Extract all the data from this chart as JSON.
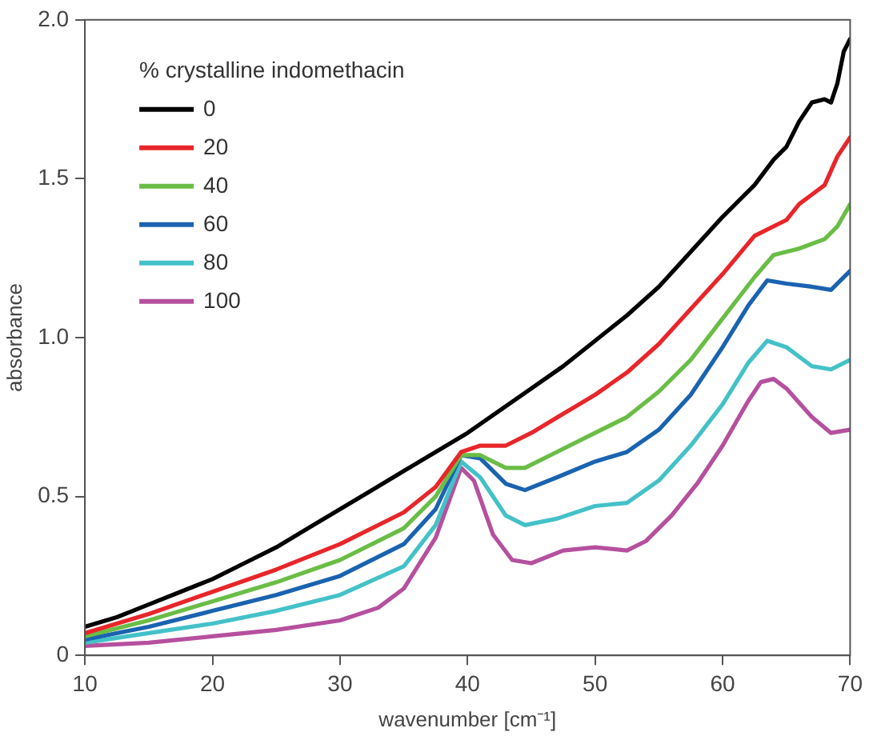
{
  "chart_data": {
    "type": "line",
    "xlabel": "wavenumber [cm⁻¹]",
    "ylabel": "absorbance",
    "legend_title": "% crystalline indomethacin",
    "legend": "top left",
    "grid": false,
    "marker": "none",
    "line_style": "solid",
    "xlim": [
      10,
      70
    ],
    "xticks": [
      10,
      20,
      30,
      40,
      50,
      60,
      70
    ],
    "ylim": [
      0,
      2
    ],
    "yticks": [
      0,
      0.5,
      {
        "value": 1,
        "label": "1.0"
      },
      1.5,
      {
        "value": 2,
        "label": "2.0"
      }
    ],
    "series": [
      {
        "name": "0",
        "color": "#000000",
        "x": [
          10,
          12.5,
          15,
          17.5,
          20,
          22.5,
          25,
          27.5,
          30,
          32.5,
          35,
          37.5,
          40,
          42.5,
          45,
          47.5,
          50,
          52.5,
          55,
          57.5,
          60,
          62.5,
          64,
          65,
          66,
          67,
          68,
          68.5,
          69,
          69.5,
          70
        ],
        "values": [
          0.09,
          0.12,
          0.16,
          0.2,
          0.24,
          0.29,
          0.34,
          0.4,
          0.46,
          0.52,
          0.58,
          0.64,
          0.7,
          0.77,
          0.84,
          0.91,
          0.99,
          1.07,
          1.16,
          1.27,
          1.38,
          1.48,
          1.56,
          1.6,
          1.68,
          1.74,
          1.75,
          1.74,
          1.8,
          1.9,
          1.94
        ]
      },
      {
        "name": "20",
        "color": "#e8262a",
        "x": [
          10,
          15,
          20,
          25,
          30,
          35,
          37.5,
          39.5,
          41,
          43,
          45,
          47.5,
          50,
          52.5,
          55,
          57.5,
          60,
          62.5,
          65,
          66,
          67,
          68,
          69,
          70
        ],
        "values": [
          0.07,
          0.13,
          0.2,
          0.27,
          0.35,
          0.45,
          0.53,
          0.64,
          0.66,
          0.66,
          0.7,
          0.76,
          0.82,
          0.89,
          0.98,
          1.09,
          1.2,
          1.32,
          1.37,
          1.42,
          1.45,
          1.48,
          1.57,
          1.63
        ]
      },
      {
        "name": "40",
        "color": "#6abd45",
        "x": [
          10,
          15,
          20,
          25,
          30,
          35,
          37.5,
          39.5,
          41,
          43,
          44.5,
          47,
          50,
          52.5,
          55,
          57.5,
          60,
          62.5,
          64,
          66,
          68,
          69,
          70
        ],
        "values": [
          0.06,
          0.11,
          0.17,
          0.23,
          0.3,
          0.4,
          0.5,
          0.63,
          0.63,
          0.59,
          0.59,
          0.64,
          0.7,
          0.75,
          0.83,
          0.93,
          1.06,
          1.19,
          1.26,
          1.28,
          1.31,
          1.35,
          1.42
        ]
      },
      {
        "name": "60",
        "color": "#1a63b0",
        "x": [
          10,
          15,
          20,
          25,
          30,
          35,
          37.5,
          39.5,
          41,
          43,
          44.5,
          47,
          50,
          52.5,
          55,
          57.5,
          60,
          62,
          63.5,
          65,
          67,
          68.5,
          70
        ],
        "values": [
          0.05,
          0.09,
          0.14,
          0.19,
          0.25,
          0.35,
          0.46,
          0.63,
          0.62,
          0.54,
          0.52,
          0.56,
          0.61,
          0.64,
          0.71,
          0.82,
          0.97,
          1.1,
          1.18,
          1.17,
          1.16,
          1.15,
          1.21
        ]
      },
      {
        "name": "80",
        "color": "#44c1c8",
        "x": [
          10,
          15,
          20,
          25,
          30,
          35,
          37.5,
          39.5,
          41,
          43,
          44.5,
          47,
          50,
          52.5,
          55,
          57.5,
          60,
          62,
          63.5,
          65,
          67,
          68.5,
          70
        ],
        "values": [
          0.04,
          0.07,
          0.1,
          0.14,
          0.19,
          0.28,
          0.41,
          0.61,
          0.56,
          0.44,
          0.41,
          0.43,
          0.47,
          0.48,
          0.55,
          0.66,
          0.79,
          0.92,
          0.99,
          0.97,
          0.91,
          0.9,
          0.93
        ]
      },
      {
        "name": "100",
        "color": "#b5509e",
        "x": [
          10,
          15,
          20,
          25,
          30,
          33,
          35,
          37.5,
          39.5,
          40.5,
          42,
          43.5,
          45,
          47.5,
          50,
          52.5,
          54,
          56,
          58,
          60,
          62,
          63,
          64,
          65,
          67,
          68.5,
          70
        ],
        "values": [
          0.03,
          0.04,
          0.06,
          0.08,
          0.11,
          0.15,
          0.21,
          0.37,
          0.59,
          0.55,
          0.38,
          0.3,
          0.29,
          0.33,
          0.34,
          0.33,
          0.36,
          0.44,
          0.54,
          0.66,
          0.8,
          0.86,
          0.87,
          0.84,
          0.75,
          0.7,
          0.71
        ]
      }
    ]
  }
}
